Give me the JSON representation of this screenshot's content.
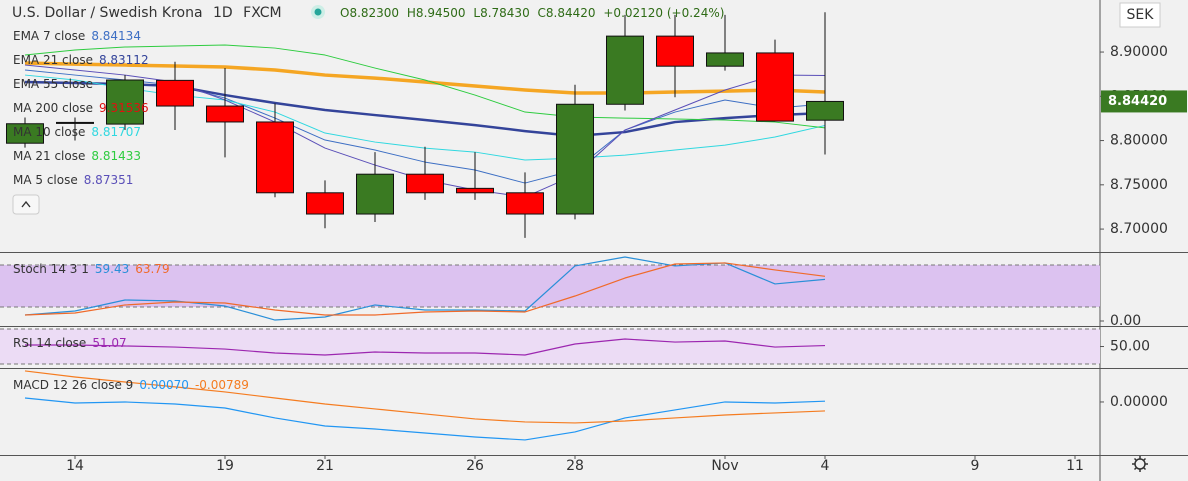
{
  "chart_data": [
    {
      "type": "candlestick",
      "title": "U.S. Dollar / Swedish Krona",
      "interval": "1D",
      "source": "FXCM",
      "ohlc_labels": [
        "O8.82300",
        "H8.94500",
        "L8.78430",
        "C8.84420"
      ],
      "change_label": "+0.02120 (+0.24%)",
      "currency": "SEK",
      "last_price_label": "8.84420",
      "categories": [
        null,
        "14",
        null,
        null,
        "19",
        null,
        "21",
        null,
        null,
        "26",
        null,
        "28",
        null,
        null,
        "Nov",
        null,
        "4",
        null,
        null,
        "9",
        null,
        "11"
      ],
      "open": [
        8.797,
        8.8205,
        8.8186,
        8.868,
        8.839,
        8.821,
        8.741,
        8.717,
        8.762,
        8.746,
        8.741,
        8.717,
        8.841,
        8.918,
        8.884,
        8.899,
        8.823,
        null,
        null,
        null,
        null,
        null
      ],
      "high": [
        8.826,
        8.826,
        8.874,
        8.889,
        8.882,
        8.842,
        8.755,
        8.787,
        8.793,
        8.787,
        8.764,
        8.863,
        8.942,
        8.942,
        8.942,
        8.914,
        8.945,
        null,
        null,
        null,
        null,
        null
      ],
      "low": [
        8.792,
        8.8,
        8.812,
        8.812,
        8.781,
        8.736,
        8.701,
        8.708,
        8.733,
        8.733,
        8.69,
        8.711,
        8.834,
        8.849,
        8.879,
        8.822,
        8.7843,
        null,
        null,
        null,
        null,
        null
      ],
      "close": [
        8.819,
        8.8195,
        8.8684,
        8.839,
        8.821,
        8.741,
        8.717,
        8.762,
        8.741,
        8.741,
        8.717,
        8.841,
        8.918,
        8.884,
        8.899,
        8.822,
        8.8442,
        null,
        null,
        null,
        null,
        null
      ],
      "up_color": "#3a7a22",
      "down_color": "#ff0000",
      "ylim": [
        8.6741,
        8.9588
      ],
      "yticks": [
        {
          "value": 8.7,
          "label": "8.70000"
        },
        {
          "value": 8.75,
          "label": "8.75000"
        },
        {
          "value": 8.8,
          "label": "8.80000"
        },
        {
          "value": 8.85,
          "label": "8.85000"
        },
        {
          "value": 8.9,
          "label": "8.90000"
        }
      ],
      "series": [
        {
          "name": "EMA 7 close",
          "readout": "8.84134",
          "color": "#3d6fc4",
          "width": 1,
          "values": [
            8.8797,
            8.874,
            8.8684,
            8.8627,
            8.848,
            8.8254,
            8.8006,
            8.7893,
            8.7757,
            8.7667,
            8.752,
            8.7667,
            8.8119,
            8.8322,
            8.8458,
            8.8367,
            8.84134,
            null,
            null,
            null,
            null,
            null
          ]
        },
        {
          "name": "EMA 21 close",
          "readout": "8.83112",
          "color": "#34449a",
          "width": 2.5,
          "values": [
            8.8661,
            8.865,
            8.8638,
            8.8616,
            8.8514,
            8.8424,
            8.8345,
            8.8288,
            8.8232,
            8.8175,
            8.8107,
            8.8051,
            8.8096,
            8.8209,
            8.8254,
            8.8288,
            8.83112,
            null,
            null,
            null,
            null,
            null
          ]
        },
        {
          "name": "EMA 55 close",
          "color": "#f5a623",
          "width": 3.5,
          "values": [
            8.8876,
            8.8864,
            8.8853,
            8.8842,
            8.8831,
            8.8797,
            8.874,
            8.8706,
            8.8661,
            8.8616,
            8.8571,
            8.8537,
            8.8537,
            8.8548,
            8.8559,
            8.8571,
            8.8548,
            null,
            null,
            null,
            null,
            null
          ]
        },
        {
          "name": "MA 200 close",
          "readout": "9.31536",
          "color": "#e01010",
          "width": 1,
          "values": [
            null,
            null,
            null,
            null,
            null,
            null,
            null,
            null,
            null,
            null,
            null,
            null,
            null,
            null,
            null,
            null,
            null,
            null,
            null,
            null,
            null,
            null
          ]
        },
        {
          "name": "MA 10 close",
          "readout": "8.81707",
          "color": "#30d8e0",
          "width": 1,
          "values": [
            8.874,
            8.8684,
            8.8593,
            8.8514,
            8.8458,
            8.8322,
            8.8085,
            8.7983,
            8.7915,
            8.787,
            8.778,
            8.7802,
            8.7836,
            8.7893,
            8.7949,
            8.804,
            8.81707,
            null,
            null,
            null,
            null,
            null
          ]
        },
        {
          "name": "MA 21 close",
          "readout": "8.81433",
          "color": "#2ecc40",
          "width": 1,
          "values": [
            8.8966,
            8.9023,
            8.9057,
            8.9068,
            8.9079,
            8.9045,
            8.8966,
            8.8819,
            8.8684,
            8.8514,
            8.8322,
            8.8266,
            8.8254,
            8.8243,
            8.8232,
            8.8209,
            8.81433,
            null,
            null,
            null,
            null,
            null
          ]
        },
        {
          "name": "MA 5 close",
          "readout": "8.87351",
          "color": "#5a4fb8",
          "width": 1,
          "values": [
            8.8853,
            8.8797,
            8.874,
            8.8661,
            8.8458,
            8.8209,
            8.7915,
            8.7723,
            8.7554,
            8.7441,
            8.7362,
            8.761,
            8.8119,
            8.8345,
            8.8571,
            8.874,
            8.87351,
            null,
            null,
            null,
            null,
            null
          ]
        }
      ]
    },
    {
      "type": "line",
      "title": "Stoch 14 3 1",
      "ylim": [
        -5.7,
        97.1
      ],
      "yticks": [
        {
          "value": 0,
          "label": "0.00"
        }
      ],
      "band": [
        20,
        80
      ],
      "band_color": "#dcc2f0",
      "series": [
        {
          "readout": "59.43",
          "color": "#2a8fd8",
          "values": [
            8.6,
            14.3,
            30,
            28.6,
            21.4,
            1.4,
            5.7,
            22.9,
            15.7,
            15.7,
            14.3,
            78.6,
            91.4,
            78.6,
            82.9,
            52.9,
            59.43,
            null,
            null,
            null,
            null,
            null
          ]
        },
        {
          "readout": "63.79",
          "color": "#f06a2a",
          "values": [
            8.6,
            11.4,
            22.9,
            27.1,
            25.7,
            15.7,
            8.6,
            8.6,
            12.9,
            14.3,
            12.9,
            35.7,
            61.4,
            81.4,
            82.9,
            72.9,
            63.79,
            null,
            null,
            null,
            null,
            null
          ]
        }
      ]
    },
    {
      "type": "line",
      "title": "RSI 14 close",
      "ylim": [
        26.6,
        72.3
      ],
      "yticks": [
        {
          "value": 50,
          "label": "50.00"
        }
      ],
      "band": [
        30,
        70
      ],
      "band_color": "#ecdcf5",
      "series": [
        {
          "readout": "51.07",
          "color": "#9c27b0",
          "values": [
            51.7,
            51.7,
            50.6,
            49.4,
            47.1,
            42.6,
            40.3,
            43.7,
            42.6,
            42.6,
            40.3,
            52.9,
            58.6,
            55.1,
            56.3,
            49.4,
            51.07,
            null,
            null,
            null,
            null,
            null
          ]
        }
      ]
    },
    {
      "type": "line",
      "title": "MACD 12 26 close 9",
      "ylim": [
        -0.0465,
        0.0289
      ],
      "yticks": [
        {
          "value": 0,
          "label": "0.00000"
        }
      ],
      "series": [
        {
          "readout": "0.00070",
          "color": "#2196f3",
          "values": [
            0.0035,
            -0.0009,
            0,
            -0.0018,
            -0.0053,
            -0.014,
            -0.0211,
            -0.0237,
            -0.0272,
            -0.0307,
            -0.0333,
            -0.0263,
            -0.014,
            -0.007,
            0,
            -0.0009,
            0.0007,
            null,
            null,
            null,
            null,
            null
          ]
        },
        {
          "readout": "-0.00789",
          "color": "#f57c20",
          "values": [
            0.0272,
            0.0219,
            0.0175,
            0.0132,
            0.0088,
            0.0035,
            -0.0018,
            -0.0061,
            -0.0105,
            -0.0149,
            -0.0175,
            -0.0184,
            -0.0167,
            -0.014,
            -0.0114,
            -0.0096,
            -0.00789,
            null,
            null,
            null,
            null,
            null
          ]
        }
      ]
    }
  ]
}
